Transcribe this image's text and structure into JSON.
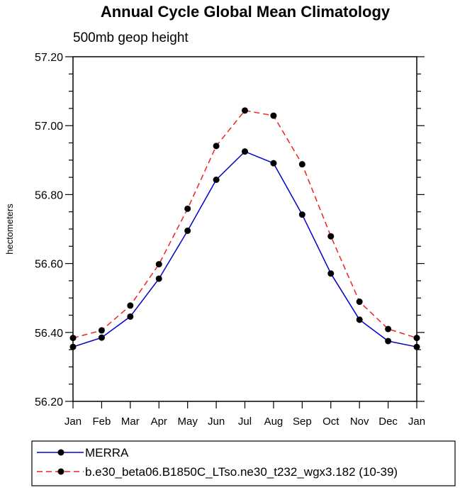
{
  "chart_data": {
    "type": "line",
    "title": "Annual Cycle Global Mean Climatology",
    "subtitle": "500mb geop height",
    "xlabel": "",
    "ylabel": "hectometers",
    "categories": [
      "Jan",
      "Feb",
      "Mar",
      "Apr",
      "May",
      "Jun",
      "Jul",
      "Aug",
      "Sep",
      "Oct",
      "Nov",
      "Dec",
      "Jan"
    ],
    "ylim": [
      56.2,
      57.2
    ],
    "yticks": [
      56.2,
      56.4,
      56.6,
      56.8,
      57.0,
      57.2
    ],
    "ytick_labels": [
      "56.20",
      "56.40",
      "56.60",
      "56.80",
      "57.00",
      "57.20"
    ],
    "series": [
      {
        "name": "MERRA",
        "color": "#0000cc",
        "dash": "solid",
        "values": [
          56.358,
          56.385,
          56.446,
          56.556,
          56.695,
          56.843,
          56.925,
          56.891,
          56.742,
          56.571,
          56.437,
          56.375,
          56.358
        ]
      },
      {
        "name": "b.e30_beta06.B1850C_LTso.ne30_t232_wgx3.182 (10-39)",
        "color": "#ee2222",
        "dash": "dashed",
        "values": [
          56.384,
          56.406,
          56.478,
          56.598,
          56.759,
          56.941,
          57.044,
          57.029,
          56.888,
          56.679,
          56.489,
          56.41,
          56.384
        ]
      }
    ],
    "legend_position": "bottom"
  }
}
